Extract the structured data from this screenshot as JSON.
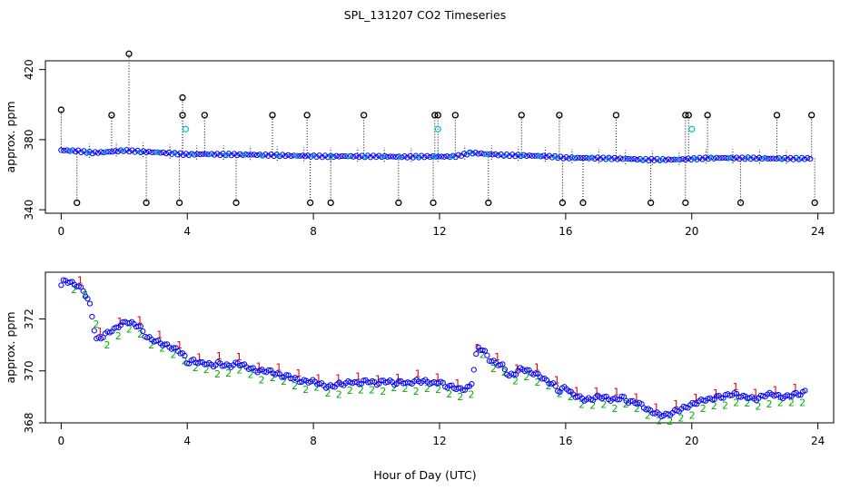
{
  "chart_data": [
    {
      "type": "scatter",
      "title": "SPL_131207  CO2 Timeseries",
      "xlabel": "",
      "ylabel": "approx. ppm",
      "xlim": [
        -0.5,
        24.5
      ],
      "ylim": [
        338,
        425
      ],
      "xticks": [
        "0",
        "4",
        "8",
        "12",
        "16",
        "20",
        "24"
      ],
      "yticks": [
        "340",
        "380",
        "420"
      ],
      "series": [
        {
          "name": "co2_raw",
          "color": "#0000ff",
          "marker": "circle",
          "x": [
            0,
            0.5,
            1,
            1.5,
            2,
            2.5,
            3,
            3.5,
            4,
            4.5,
            5,
            5.5,
            6,
            6.5,
            7,
            7.5,
            8,
            8.5,
            9,
            9.5,
            10,
            10.5,
            11,
            11.5,
            12,
            12.5,
            13,
            13.5,
            14,
            14.5,
            15,
            15.5,
            16,
            16.5,
            17,
            17.5,
            18,
            18.5,
            19,
            19.5,
            20,
            20.5,
            21,
            21.5,
            22,
            22.5,
            23,
            23.5,
            23.8
          ],
          "y": [
            374,
            373.5,
            372.5,
            373,
            373.8,
            373.2,
            372.8,
            372.2,
            371.5,
            371.8,
            371.6,
            371.5,
            371.4,
            371.2,
            371,
            370.8,
            370.6,
            370.4,
            370.6,
            370.4,
            370.5,
            370.3,
            370.2,
            370.4,
            370.3,
            370.4,
            372.5,
            371.8,
            371.2,
            371.0,
            370.8,
            370.4,
            369.6,
            369.6,
            369.4,
            369.2,
            369.0,
            368.6,
            368.6,
            368.6,
            369.0,
            369.4,
            369.6,
            369.4,
            369.4,
            369.2,
            369.2,
            369.2,
            369.3
          ]
        }
      ],
      "spikes": {
        "color": "#000000",
        "marker": "circle",
        "high": [
          {
            "x": 0.0,
            "y": 397
          },
          {
            "x": 1.6,
            "y": 394
          },
          {
            "x": 2.15,
            "y": 429
          },
          {
            "x": 3.85,
            "y": 394
          },
          {
            "x": 3.85,
            "y": 404
          },
          {
            "x": 4.55,
            "y": 394
          },
          {
            "x": 6.7,
            "y": 394
          },
          {
            "x": 7.8,
            "y": 394
          },
          {
            "x": 9.6,
            "y": 394
          },
          {
            "x": 11.85,
            "y": 394
          },
          {
            "x": 11.95,
            "y": 394
          },
          {
            "x": 12.5,
            "y": 394
          },
          {
            "x": 14.6,
            "y": 394
          },
          {
            "x": 15.8,
            "y": 394
          },
          {
            "x": 17.6,
            "y": 394
          },
          {
            "x": 19.8,
            "y": 394
          },
          {
            "x": 19.9,
            "y": 394
          },
          {
            "x": 20.5,
            "y": 394
          },
          {
            "x": 22.7,
            "y": 394
          },
          {
            "x": 23.8,
            "y": 394
          }
        ],
        "low": [
          {
            "x": 0.5,
            "y": 344
          },
          {
            "x": 2.7,
            "y": 344
          },
          {
            "x": 3.75,
            "y": 344
          },
          {
            "x": 5.55,
            "y": 344
          },
          {
            "x": 7.9,
            "y": 344
          },
          {
            "x": 8.55,
            "y": 344
          },
          {
            "x": 10.7,
            "y": 344
          },
          {
            "x": 11.8,
            "y": 344
          },
          {
            "x": 13.55,
            "y": 344
          },
          {
            "x": 15.9,
            "y": 344
          },
          {
            "x": 16.55,
            "y": 344
          },
          {
            "x": 18.7,
            "y": 344
          },
          {
            "x": 19.8,
            "y": 344
          },
          {
            "x": 21.55,
            "y": 344
          },
          {
            "x": 23.9,
            "y": 344
          }
        ],
        "cyan": [
          {
            "x": 3.95,
            "y": 386
          },
          {
            "x": 11.95,
            "y": 386
          },
          {
            "x": 20.0,
            "y": 386
          }
        ]
      }
    },
    {
      "type": "scatter",
      "title": "",
      "xlabel": "Hour of Day (UTC)",
      "ylabel": "approx. ppm",
      "xlim": [
        -0.5,
        24.5
      ],
      "ylim": [
        368,
        373.8
      ],
      "xticks": [
        "0",
        "4",
        "8",
        "12",
        "16",
        "20",
        "24"
      ],
      "yticks": [
        "368",
        "370",
        "372"
      ],
      "series": [
        {
          "name": "co2_filtered",
          "color": "#0000ff",
          "marker": "circle",
          "x": [
            0,
            0.1,
            0.3,
            0.5,
            0.7,
            0.9,
            1.0,
            1.1,
            1.3,
            1.5,
            1.7,
            1.9,
            2.1,
            2.3,
            2.5,
            2.7,
            2.9,
            3.1,
            3.3,
            3.5,
            3.7,
            3.9,
            4.0,
            4.2,
            4.4,
            4.6,
            4.8,
            5.0,
            5.2,
            5.4,
            5.6,
            5.8,
            6.0,
            6.2,
            6.4,
            6.6,
            6.8,
            7.0,
            7.2,
            7.4,
            7.6,
            7.8,
            8.0,
            8.2,
            8.4,
            8.6,
            8.8,
            9.0,
            9.2,
            9.4,
            9.6,
            9.8,
            10.0,
            10.2,
            10.4,
            10.6,
            10.8,
            11.0,
            11.2,
            11.4,
            11.6,
            11.8,
            12.0,
            12.2,
            12.4,
            12.6,
            12.8,
            13.0,
            13.2,
            13.4,
            13.6,
            13.8,
            14.0,
            14.2,
            14.4,
            14.6,
            14.8,
            15.0,
            15.2,
            15.4,
            15.6,
            15.8,
            16.0,
            16.2,
            16.4,
            16.6,
            16.8,
            17.0,
            17.2,
            17.4,
            17.6,
            17.8,
            18.0,
            18.2,
            18.4,
            18.6,
            18.8,
            19.0,
            19.2,
            19.4,
            19.6,
            19.8,
            20.0,
            20.2,
            20.4,
            20.6,
            20.8,
            21.0,
            21.2,
            21.4,
            21.6,
            21.8,
            22.0,
            22.2,
            22.4,
            22.6,
            22.8,
            23.0,
            23.2,
            23.4,
            23.6
          ],
          "y": [
            373.3,
            373.5,
            373.4,
            373.3,
            373.1,
            372.6,
            372.0,
            371.2,
            371.3,
            371.5,
            371.6,
            371.8,
            371.9,
            371.8,
            371.7,
            371.3,
            371.2,
            371.1,
            371.0,
            370.9,
            370.8,
            370.6,
            370.3,
            370.4,
            370.3,
            370.3,
            370.2,
            370.3,
            370.2,
            370.2,
            370.3,
            370.2,
            370.1,
            370.0,
            370.0,
            370.0,
            369.9,
            369.8,
            369.8,
            369.7,
            369.6,
            369.6,
            369.6,
            369.5,
            369.4,
            369.4,
            369.5,
            369.5,
            369.6,
            369.5,
            369.6,
            369.6,
            369.5,
            369.6,
            369.6,
            369.5,
            369.6,
            369.5,
            369.6,
            369.6,
            369.6,
            369.5,
            369.6,
            369.4,
            369.4,
            369.3,
            369.3,
            369.4,
            370.9,
            370.8,
            370.4,
            370.3,
            370.2,
            369.8,
            369.9,
            370.1,
            370.0,
            369.9,
            369.8,
            369.6,
            369.5,
            369.2,
            369.4,
            369.1,
            369.0,
            368.9,
            368.9,
            369.0,
            369.0,
            368.9,
            368.9,
            369.0,
            368.8,
            368.8,
            368.7,
            368.5,
            368.4,
            368.3,
            368.3,
            368.4,
            368.5,
            368.6,
            368.7,
            368.8,
            368.9,
            368.9,
            369.0,
            369.0,
            369.1,
            369.1,
            369.0,
            369.0,
            368.9,
            369.0,
            369.1,
            369.1,
            369.0,
            369.0,
            369.1,
            369.1,
            369.2
          ]
        }
      ],
      "annotations": {
        "red_flags": [
          "1"
        ],
        "green_flags": [
          "2"
        ]
      }
    }
  ],
  "labels": {
    "title": "SPL_131207  CO2 Timeseries",
    "top_ylabel": "approx. ppm",
    "bottom_ylabel": "approx. ppm",
    "xlabel": "Hour of Day (UTC)"
  }
}
